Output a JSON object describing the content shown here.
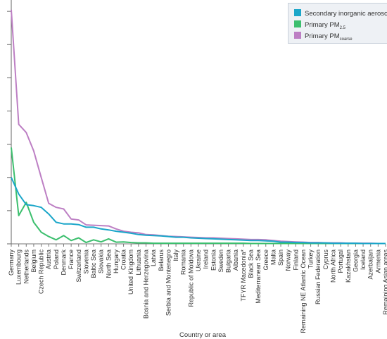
{
  "chart_data": {
    "type": "line",
    "title": "",
    "xlabel": "Country or area",
    "ylabel": "",
    "grid": false,
    "legend_position": "top-right",
    "categories": [
      "Germany",
      "Luxembourg",
      "Netherlands",
      "Belgium",
      "Czech Republic",
      "Austria",
      "Poland",
      "Denmark",
      "France",
      "Switzerland",
      "Slovenia",
      "Baltic Sea",
      "Slovakia",
      "North Sea",
      "Hungary",
      "Croatia",
      "United Kingdom",
      "Lithuania",
      "Bosnia and Herzegovina",
      "Latvia",
      "Belarus",
      "Serbia and Montenegro",
      "Italy",
      "Romania",
      "Republic of Moldova",
      "Ukraine",
      "Ireland",
      "Estonia",
      "Sweden",
      "Bulgaria",
      "Albania",
      "TFYR Macedonia*",
      "Black Sea",
      "Mediterranean Sea",
      "Greece",
      "Malta",
      "Spain",
      "Norway",
      "Finland",
      "Remaining NE Atlantic Ocean",
      "Turkey",
      "Russian Federation",
      "Cyprus",
      "North Africa",
      "Portugal",
      "Kazakhstan",
      "Georgia",
      "Iceland",
      "Azerbaijan",
      "Armenia",
      "Remaining Asian areas"
    ],
    "ylim": [
      0,
      7.3
    ],
    "series": [
      {
        "name": "Secondary inorganic aerosols",
        "color": "#1ba6c9",
        "values": [
          2.0,
          1.5,
          1.18,
          1.15,
          1.1,
          0.9,
          0.65,
          0.6,
          0.6,
          0.58,
          0.5,
          0.5,
          0.45,
          0.42,
          0.38,
          0.35,
          0.32,
          0.28,
          0.26,
          0.25,
          0.24,
          0.22,
          0.2,
          0.2,
          0.18,
          0.17,
          0.16,
          0.15,
          0.14,
          0.13,
          0.12,
          0.11,
          0.1,
          0.1,
          0.09,
          0.08,
          0.05,
          0.05,
          0.04,
          0.04,
          0.03,
          0.03,
          0.03,
          0.02,
          0.02,
          0.02,
          0.02,
          0.01,
          0.01,
          0.01,
          0.01
        ]
      },
      {
        "name": "Primary PM2.5",
        "color": "#3cbf6e",
        "values": [
          2.9,
          0.85,
          1.25,
          0.65,
          0.35,
          0.22,
          0.12,
          0.25,
          0.1,
          0.18,
          0.04,
          0.12,
          0.06,
          0.15,
          0.05,
          0.06,
          0.04,
          0.03,
          0.03,
          0.02,
          0.02,
          0.02,
          0.02,
          0.02,
          0.02,
          0.02,
          0.02,
          0.02,
          0.02,
          0.02,
          0.02,
          0.02,
          0.01,
          0.01,
          0.01,
          0.01,
          0.01,
          0.01,
          0.01,
          0.01,
          0.01,
          0.01,
          0.01,
          0.01,
          0.01,
          0.01,
          0.01,
          0.01,
          0.01,
          0.01,
          0.01
        ]
      },
      {
        "name": "Primary PMcoarse",
        "color": "#bd7fc4",
        "values": [
          7.05,
          3.6,
          3.35,
          2.8,
          2.0,
          1.22,
          1.1,
          1.05,
          0.75,
          0.72,
          0.57,
          0.56,
          0.55,
          0.54,
          0.45,
          0.38,
          0.35,
          0.33,
          0.28,
          0.27,
          0.25,
          0.23,
          0.22,
          0.21,
          0.2,
          0.19,
          0.18,
          0.18,
          0.17,
          0.16,
          0.15,
          0.14,
          0.13,
          0.13,
          0.12,
          0.1,
          0.08,
          0.07,
          0.06,
          0.05,
          0.04,
          0.04,
          0.03,
          0.03,
          0.03,
          0.02,
          0.02,
          0.02,
          0.02,
          0.01,
          0.01
        ]
      }
    ]
  },
  "legend": {
    "items": [
      {
        "color": "#1ba6c9",
        "label": "Secondary inorganic aerosols",
        "sub": ""
      },
      {
        "color": "#3cbf6e",
        "label": "Primary PM",
        "sub": "2.5"
      },
      {
        "color": "#bd7fc4",
        "label": "Primary PM",
        "sub": "coarse"
      }
    ]
  }
}
